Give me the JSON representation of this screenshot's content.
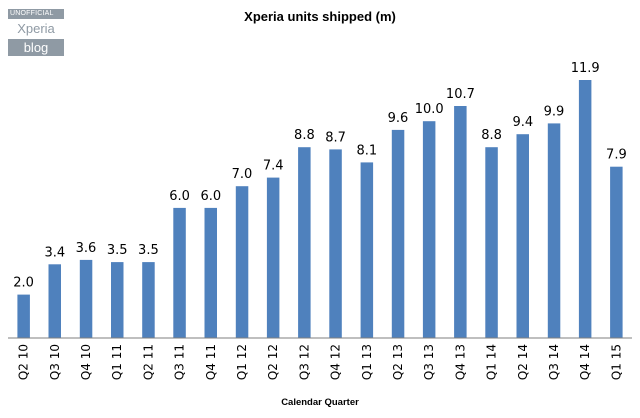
{
  "watermark": {
    "top": "UNOFFICIAL",
    "middle": "Xperia",
    "bottom": "blog"
  },
  "chart_data": {
    "type": "bar",
    "title": "Xperia units shipped (m)",
    "xlabel": "Calendar Quarter",
    "ylabel": "",
    "categories": [
      "Q2 10",
      "Q3 10",
      "Q4 10",
      "Q1 11",
      "Q2 11",
      "Q3 11",
      "Q4 11",
      "Q1 12",
      "Q2 12",
      "Q3 12",
      "Q4 12",
      "Q1 13",
      "Q2 13",
      "Q3 13",
      "Q4 13",
      "Q1 14",
      "Q2 14",
      "Q3 14",
      "Q4 14",
      "Q1 15"
    ],
    "values": [
      2.0,
      3.4,
      3.6,
      3.5,
      3.5,
      6.0,
      6.0,
      7.0,
      7.4,
      8.8,
      8.7,
      8.1,
      9.6,
      10.0,
      10.7,
      8.8,
      9.4,
      9.9,
      11.9,
      7.9
    ],
    "value_labels": [
      "2.0",
      "3.4",
      "3.6",
      "3.5",
      "3.5",
      "6.0",
      "6.0",
      "7.0",
      "7.4",
      "8.8",
      "8.7",
      "8.1",
      "9.6",
      "10.0",
      "10.7",
      "8.8",
      "9.4",
      "9.9",
      "11.9",
      "7.9"
    ],
    "ylim": [
      0,
      12.5
    ],
    "grid": false,
    "bar_color": "#4f81bd"
  }
}
